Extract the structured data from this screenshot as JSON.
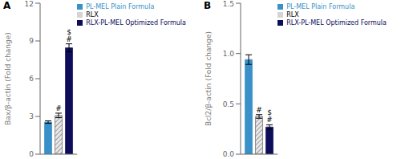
{
  "chart_data": [
    {
      "type": "bar",
      "title": "A",
      "ylabel": "Bax/β-actin (Fold change)",
      "categories": [
        null
      ],
      "series": [
        {
          "name": "PL-MEL Plain Formula",
          "color": "#3a90c8",
          "values": [
            2.55
          ],
          "errors": [
            0.1
          ]
        },
        {
          "name": "RLX",
          "color": "#e8e8e8",
          "values": [
            3.08
          ],
          "errors": [
            0.18
          ],
          "annotations": [
            "#"
          ]
        },
        {
          "name": "RLX-PL-MEL Optimized Formula",
          "color": "#0d0d5c",
          "values": [
            8.45
          ],
          "errors": [
            0.32
          ],
          "annotations": [
            "$",
            "#"
          ]
        }
      ],
      "ylim": [
        0,
        12
      ],
      "yticks": [
        0,
        3,
        6,
        9,
        12
      ],
      "legend": "upper right",
      "tick_labels": "y",
      "grid": false
    },
    {
      "type": "bar",
      "title": "B",
      "ylabel": "Bcl2/β-actin (Fold change)",
      "categories": [
        null
      ],
      "series": [
        {
          "name": "PL-MEL Plain Formula",
          "color": "#3a90c8",
          "values": [
            0.94
          ],
          "errors": [
            0.048
          ]
        },
        {
          "name": "RLX",
          "color": "#e8e8e8",
          "values": [
            0.375
          ],
          "errors": [
            0.018
          ],
          "annotations": [
            "#"
          ]
        },
        {
          "name": "RLX-PL-MEL Optimized Formula",
          "color": "#0d0d5c",
          "values": [
            0.27
          ],
          "errors": [
            0.022
          ],
          "annotations": [
            "$",
            "#"
          ]
        }
      ],
      "ylim": [
        0,
        1.5
      ],
      "yticks": [
        {
          "value": 0,
          "label": "0.0"
        },
        0.5,
        {
          "value": 1,
          "label": "1.0"
        },
        1.5
      ],
      "legend": "upper right",
      "tick_labels": "y",
      "grid": false
    }
  ]
}
